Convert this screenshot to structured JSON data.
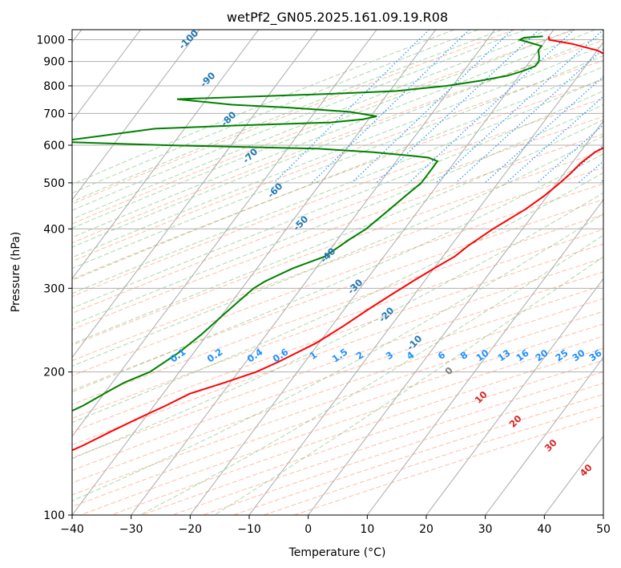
{
  "chart_data": {
    "type": "line",
    "title": "wetPf2_GN05.2025.161.09.19.R08",
    "xlabel": "Temperature (°C)",
    "ylabel": "Pressure (hPa)",
    "xlim": [
      -40,
      50
    ],
    "ylim": [
      1050,
      100
    ],
    "y_scale": "log",
    "grid": true,
    "x_ticks": [
      "−40",
      "−30",
      "−20",
      "−10",
      "0",
      "10",
      "20",
      "30",
      "40",
      "50"
    ],
    "y_ticks": [
      "100",
      "200",
      "300",
      "400",
      "500",
      "600",
      "700",
      "800",
      "900",
      "1000"
    ],
    "skew_isotherm_labels": [
      "-100",
      "-90",
      "-80",
      "-70",
      "-60",
      "-50",
      "-40",
      "-30",
      "-20",
      "-10"
    ],
    "dry_adiabat_labels": [
      "0",
      "10",
      "20",
      "30",
      "40"
    ],
    "mixing_ratio_labels": [
      "0.1",
      "0.2",
      "0.4",
      "0.6",
      "1",
      "1.5",
      "2",
      "3",
      "4",
      "6",
      "8",
      "10",
      "13",
      "16",
      "20",
      "25",
      "30",
      "36"
    ],
    "colors": {
      "temperature": "#ff0000",
      "dewpoint": "#008000",
      "isotherm_labels": "#1f77b4",
      "mixing_ratio": "#1e90ff",
      "dry_adiabat": "#ff7f50",
      "dry_adiabat_labels": "#d62728",
      "moist_adiabat": "#2ca02c",
      "zero_label": "#808080"
    },
    "series": [
      {
        "color": "#ff0000",
        "points": [
          [
            1017,
            -20
          ],
          [
            1000,
            -19.5
          ],
          [
            980,
            -15
          ],
          [
            950,
            -10
          ],
          [
            920,
            -7
          ],
          [
            900,
            -6
          ],
          [
            880,
            -3
          ],
          [
            860,
            -1
          ],
          [
            840,
            0.5
          ],
          [
            800,
            2
          ],
          [
            760,
            3.5
          ],
          [
            720,
            4
          ],
          [
            700,
            4
          ],
          [
            680,
            4.5
          ],
          [
            650,
            5
          ],
          [
            630,
            5.3
          ],
          [
            620,
            5.5
          ],
          [
            600,
            4
          ],
          [
            580,
            2.5
          ],
          [
            550,
            1.5
          ],
          [
            520,
            1
          ],
          [
            500,
            0.5
          ],
          [
            470,
            -0.5
          ],
          [
            440,
            -2
          ],
          [
            400,
            -5
          ],
          [
            370,
            -7
          ],
          [
            350,
            -8
          ],
          [
            330,
            -10
          ],
          [
            310,
            -12
          ],
          [
            290,
            -14
          ],
          [
            270,
            -16
          ],
          [
            250,
            -18
          ],
          [
            230,
            -20.5
          ],
          [
            210,
            -24.5
          ],
          [
            200,
            -27
          ],
          [
            190,
            -31
          ],
          [
            180,
            -35.5
          ],
          [
            170,
            -38
          ],
          [
            160,
            -41
          ],
          [
            150,
            -44
          ],
          [
            140,
            -47
          ],
          [
            130,
            -51
          ],
          [
            120,
            -55
          ],
          [
            110,
            -59
          ],
          [
            100,
            -63
          ]
        ]
      },
      {
        "color": "#008000",
        "points": [
          [
            1017,
            -21
          ],
          [
            1010,
            -24
          ],
          [
            1000,
            -24.5
          ],
          [
            990,
            -23
          ],
          [
            970,
            -20
          ],
          [
            950,
            -20
          ],
          [
            920,
            -19
          ],
          [
            900,
            -18.5
          ],
          [
            880,
            -18.5
          ],
          [
            860,
            -20
          ],
          [
            840,
            -22
          ],
          [
            820,
            -26
          ],
          [
            800,
            -31
          ],
          [
            780,
            -39
          ],
          [
            770,
            -49
          ],
          [
            750,
            -75
          ],
          [
            730,
            -65
          ],
          [
            720,
            -55
          ],
          [
            705,
            -44
          ],
          [
            690,
            -39
          ],
          [
            680,
            -41
          ],
          [
            670,
            -46
          ],
          [
            660,
            -62
          ],
          [
            650,
            -75
          ],
          [
            610,
            -90
          ],
          [
            600,
            -71
          ],
          [
            595,
            -58
          ],
          [
            590,
            -45
          ],
          [
            580,
            -35
          ],
          [
            570,
            -28
          ],
          [
            565,
            -25
          ],
          [
            555,
            -23
          ],
          [
            540,
            -23
          ],
          [
            520,
            -23
          ],
          [
            500,
            -23
          ],
          [
            470,
            -24
          ],
          [
            440,
            -25
          ],
          [
            400,
            -26.5
          ],
          [
            380,
            -28
          ],
          [
            350,
            -30
          ],
          [
            330,
            -34
          ],
          [
            310,
            -37
          ],
          [
            300,
            -38
          ],
          [
            280,
            -39
          ],
          [
            260,
            -40
          ],
          [
            240,
            -41
          ],
          [
            220,
            -42.5
          ],
          [
            200,
            -45
          ],
          [
            190,
            -48
          ],
          [
            180,
            -50
          ],
          [
            170,
            -52
          ],
          [
            160,
            -55
          ],
          [
            150,
            -58
          ],
          [
            140,
            -61
          ],
          [
            130,
            -64
          ],
          [
            120,
            -67
          ],
          [
            110,
            -70
          ],
          [
            100,
            -73
          ]
        ]
      }
    ]
  }
}
